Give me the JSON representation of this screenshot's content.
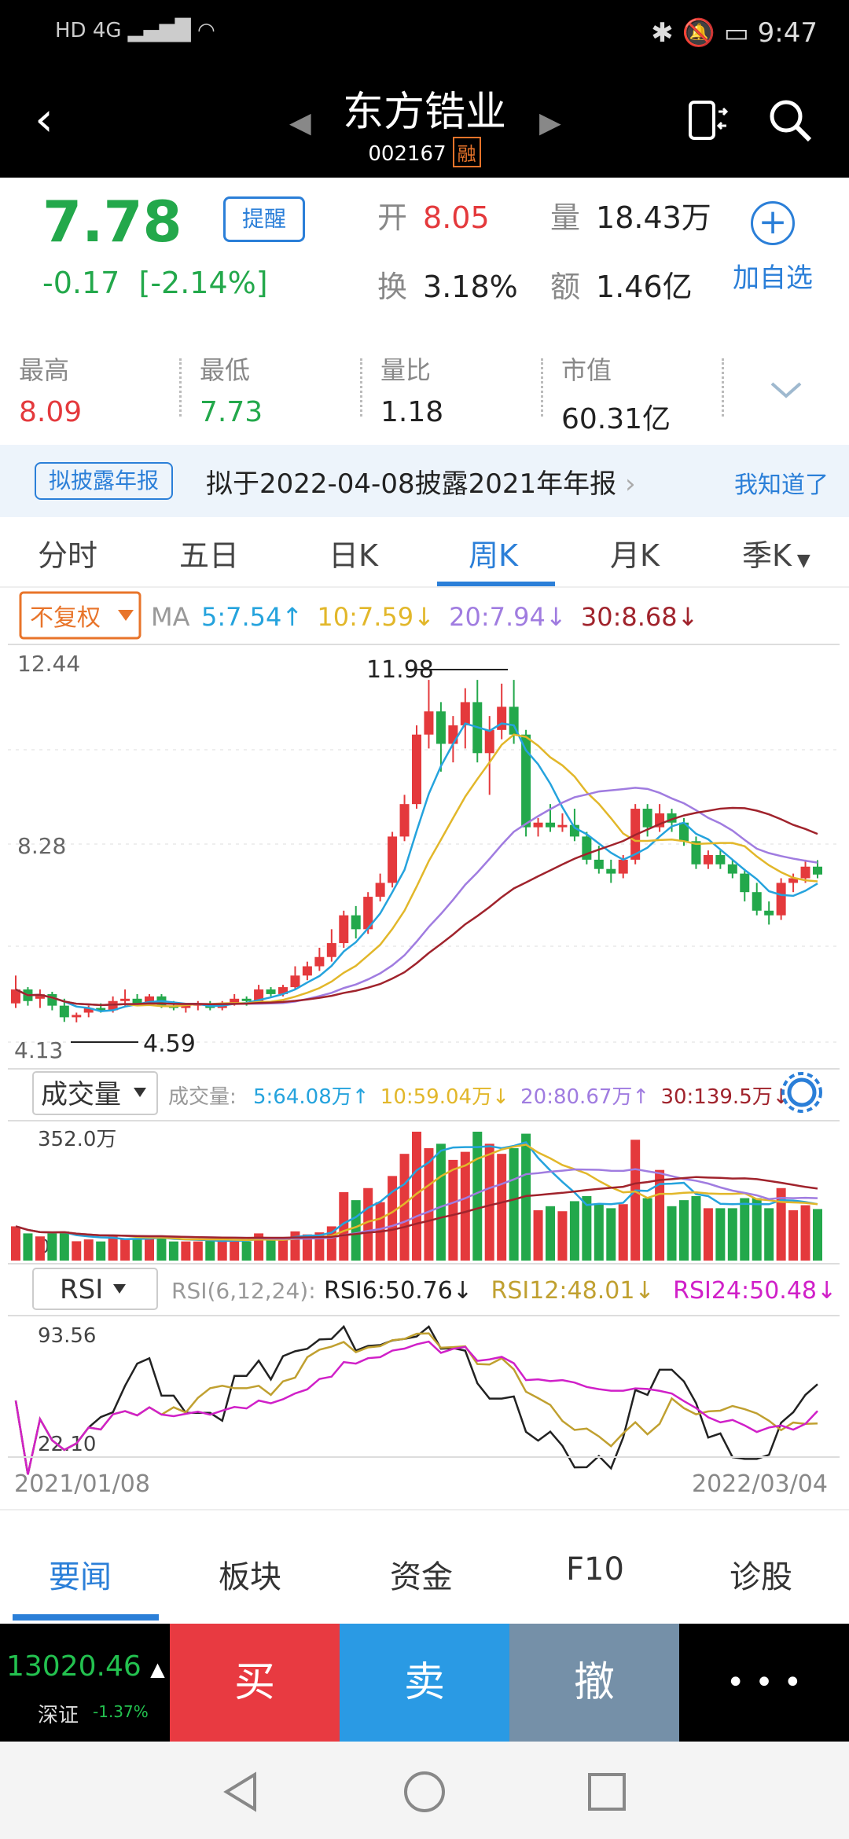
{
  "status": {
    "left": "HD 4G",
    "time": "9:47"
  },
  "header": {
    "title": "东方锆业",
    "code": "002167",
    "rong": "融"
  },
  "quote": {
    "price": "7.78",
    "change": "-0.17",
    "change_pct": "[-2.14%]",
    "remind": "提醒",
    "open_label": "开",
    "open": "8.05",
    "vol_label": "量",
    "vol": "18.43万",
    "turn_label": "换",
    "turn": "3.18%",
    "amt_label": "额",
    "amt": "1.46亿",
    "add_fav": "加自选"
  },
  "stats": [
    {
      "label": "最高",
      "value": "8.09",
      "color": "#e4393c"
    },
    {
      "label": "最低",
      "value": "7.73",
      "color": "#23a84b"
    },
    {
      "label": "量比",
      "value": "1.18",
      "color": "#222"
    },
    {
      "label": "市值",
      "value": "60.31亿",
      "color": "#222"
    }
  ],
  "notice": {
    "tag": "拟披露年报",
    "text": "拟于2022-04-08披露2021年年报",
    "link": "我知道了"
  },
  "tabs": [
    "分时",
    "五日",
    "日K",
    "周K",
    "月K",
    "季K"
  ],
  "active_tab": "周K",
  "chart_data": {
    "type": "candlestick",
    "title": "",
    "adjust": "不复权",
    "ma_label": "MA",
    "ma": [
      {
        "name": "5:7.54↑",
        "color": "#25a3dd"
      },
      {
        "name": "10:7.59↓",
        "color": "#e2b72a"
      },
      {
        "name": "20:7.94↓",
        "color": "#a07ce0"
      },
      {
        "name": "30:8.68↓",
        "color": "#a0232c"
      }
    ],
    "y_ticks": [
      "12.44",
      "8.28",
      "4.13"
    ],
    "ylim": [
      4.13,
      12.44
    ],
    "high_marker": "11.98",
    "low_marker": "4.59",
    "x_start": "2021/01/08",
    "x_end": "2022/03/04",
    "candles": [
      [
        5.0,
        5.6,
        4.9,
        5.3
      ],
      [
        5.3,
        5.35,
        4.95,
        5.05
      ],
      [
        5.1,
        5.3,
        4.9,
        5.2
      ],
      [
        5.2,
        5.25,
        4.85,
        4.95
      ],
      [
        4.95,
        5.1,
        4.6,
        4.7
      ],
      [
        4.7,
        4.8,
        4.59,
        4.75
      ],
      [
        4.8,
        4.95,
        4.7,
        4.9
      ],
      [
        4.9,
        5.0,
        4.8,
        4.85
      ],
      [
        4.85,
        5.15,
        4.8,
        5.05
      ],
      [
        5.05,
        5.3,
        4.95,
        5.1
      ],
      [
        5.1,
        5.2,
        4.95,
        5.0
      ],
      [
        5.0,
        5.2,
        4.95,
        5.15
      ],
      [
        5.15,
        5.2,
        4.9,
        4.95
      ],
      [
        4.95,
        5.05,
        4.85,
        4.9
      ],
      [
        4.9,
        5.0,
        4.8,
        4.95
      ],
      [
        4.95,
        5.05,
        4.85,
        5.0
      ],
      [
        5.0,
        5.05,
        4.85,
        4.9
      ],
      [
        4.9,
        5.05,
        4.85,
        5.0
      ],
      [
        5.0,
        5.2,
        4.95,
        5.1
      ],
      [
        5.1,
        5.15,
        4.95,
        5.05
      ],
      [
        5.05,
        5.4,
        5.0,
        5.3
      ],
      [
        5.3,
        5.35,
        5.15,
        5.2
      ],
      [
        5.2,
        5.4,
        5.15,
        5.35
      ],
      [
        5.35,
        5.8,
        5.3,
        5.6
      ],
      [
        5.6,
        5.9,
        5.5,
        5.8
      ],
      [
        5.8,
        6.2,
        5.7,
        6.0
      ],
      [
        6.0,
        6.6,
        5.9,
        6.3
      ],
      [
        6.3,
        7.0,
        6.2,
        6.9
      ],
      [
        6.9,
        7.1,
        6.4,
        6.6
      ],
      [
        6.6,
        7.4,
        6.5,
        7.3
      ],
      [
        7.3,
        7.8,
        7.2,
        7.6
      ],
      [
        7.6,
        8.7,
        7.5,
        8.6
      ],
      [
        8.6,
        9.5,
        8.5,
        9.3
      ],
      [
        9.3,
        11.0,
        9.2,
        10.8
      ],
      [
        10.8,
        11.98,
        10.5,
        11.3
      ],
      [
        11.3,
        11.5,
        10.0,
        10.6
      ],
      [
        10.6,
        11.2,
        10.2,
        11.0
      ],
      [
        11.0,
        11.8,
        10.5,
        11.5
      ],
      [
        11.5,
        11.98,
        10.2,
        10.4
      ],
      [
        10.4,
        11.2,
        9.5,
        10.9
      ],
      [
        10.9,
        11.9,
        10.7,
        11.4
      ],
      [
        11.4,
        11.98,
        10.6,
        10.8
      ],
      [
        10.8,
        10.9,
        8.6,
        8.8
      ],
      [
        8.8,
        9.0,
        8.6,
        8.9
      ],
      [
        8.9,
        9.3,
        8.7,
        8.8
      ],
      [
        8.8,
        9.1,
        8.7,
        8.85
      ],
      [
        8.85,
        9.2,
        8.5,
        8.6
      ],
      [
        8.6,
        8.7,
        8.0,
        8.1
      ],
      [
        8.1,
        8.4,
        7.8,
        7.9
      ],
      [
        7.9,
        8.1,
        7.6,
        7.8
      ],
      [
        7.8,
        8.2,
        7.7,
        8.1
      ],
      [
        8.1,
        9.3,
        8.0,
        9.2
      ],
      [
        9.2,
        9.3,
        8.6,
        8.8
      ],
      [
        8.8,
        9.3,
        8.7,
        9.1
      ],
      [
        9.1,
        9.2,
        8.7,
        8.9
      ],
      [
        8.9,
        9.0,
        8.4,
        8.5
      ],
      [
        8.5,
        8.6,
        7.9,
        8.0
      ],
      [
        8.0,
        8.3,
        7.9,
        8.2
      ],
      [
        8.2,
        8.3,
        7.9,
        8.0
      ],
      [
        8.0,
        8.1,
        7.7,
        7.8
      ],
      [
        7.8,
        7.9,
        7.2,
        7.4
      ],
      [
        7.4,
        7.6,
        6.9,
        7.0
      ],
      [
        7.0,
        7.2,
        6.7,
        6.9
      ],
      [
        6.9,
        7.7,
        6.8,
        7.6
      ],
      [
        7.6,
        7.8,
        7.4,
        7.7
      ],
      [
        7.7,
        8.1,
        7.6,
        7.95
      ],
      [
        7.95,
        8.09,
        7.7,
        7.78
      ]
    ],
    "volume": {
      "label": "成交量",
      "title": "成交量:",
      "ma": [
        {
          "name": "5:64.08万↑",
          "color": "#25a3dd"
        },
        {
          "name": "10:59.04万↓",
          "color": "#e2b72a"
        },
        {
          "name": "20:80.67万↑",
          "color": "#a07ce0"
        },
        {
          "name": "30:139.5万↓",
          "color": "#a0232c"
        }
      ],
      "y_tick": "352.0万",
      "zero": "0",
      "max": 352
    },
    "rsi": {
      "label": "RSI",
      "title": "RSI(6,12,24):",
      "series": [
        {
          "name": "RSI6:50.76↓",
          "color": "#222222"
        },
        {
          "name": "RSI12:48.01↓",
          "color": "#c0a030"
        },
        {
          "name": "RSI24:50.48↓",
          "color": "#d020c8"
        }
      ],
      "y_ticks": [
        "93.56",
        "22.10"
      ]
    }
  },
  "bottom_tabs": [
    "要闻",
    "板块",
    "资金",
    "F10",
    "诊股"
  ],
  "trade": {
    "index": "13020.46",
    "index_name": "深证",
    "index_pct": "-1.37%",
    "buy": "买",
    "sell": "卖",
    "cancel": "撤",
    "more": "• • •"
  }
}
